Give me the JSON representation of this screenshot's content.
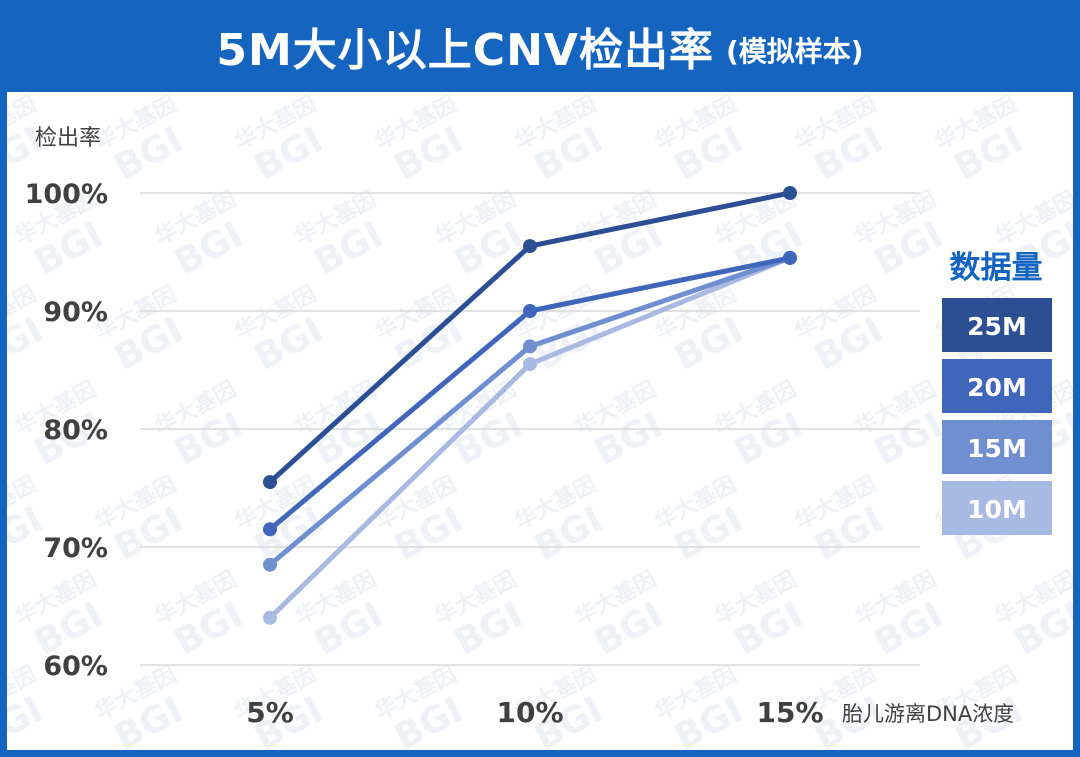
{
  "title": {
    "main": "5M大小以上CNV检出率",
    "sub": "(模拟样本)"
  },
  "watermark": {
    "line1": "华大基因",
    "line2": "BGI"
  },
  "colors": {
    "frame": "#1565c0",
    "grid": "#d9d9d9",
    "axis_text": "#404040",
    "series": [
      "#2c4f93",
      "#3f66b9",
      "#6f8fd0",
      "#a8b9e2"
    ]
  },
  "chart_data": {
    "type": "line",
    "x": [
      "5%",
      "10%",
      "15%"
    ],
    "xlabel": "胎儿游离DNA浓度",
    "ylabel": "检出率",
    "ylim": [
      60,
      100
    ],
    "yticks": [
      "60%",
      "70%",
      "80%",
      "90%",
      "100%"
    ],
    "ytick_values": [
      60,
      70,
      80,
      90,
      100
    ],
    "grid": true,
    "legend_title": "数据量",
    "legend_position": "right",
    "series": [
      {
        "name": "25M",
        "values": [
          75.5,
          95.5,
          100
        ]
      },
      {
        "name": "20M",
        "values": [
          71.5,
          90,
          94.5
        ]
      },
      {
        "name": "15M",
        "values": [
          68.5,
          87,
          94.5
        ]
      },
      {
        "name": "10M",
        "values": [
          64,
          85.5,
          94.5
        ]
      }
    ]
  }
}
